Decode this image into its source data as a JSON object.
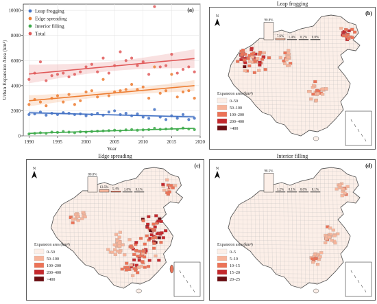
{
  "chart_data": [
    {
      "type": "scatter",
      "panel_label": "(a)",
      "xlabel": "Year",
      "ylabel": "Urban Expansion Area (km²)",
      "xlim": [
        1989,
        2020
      ],
      "ylim": [
        0,
        10500
      ],
      "x_ticks": [
        1990,
        1995,
        2000,
        2005,
        2010,
        2015,
        2020
      ],
      "y_ticks": [
        0,
        2000,
        4000,
        6000,
        8000,
        10000
      ],
      "grid": true,
      "legend_position": "top-left",
      "x": [
        1990,
        1991,
        1992,
        1993,
        1994,
        1995,
        1996,
        1997,
        1998,
        1999,
        2000,
        2001,
        2002,
        2003,
        2004,
        2005,
        2006,
        2007,
        2008,
        2009,
        2010,
        2011,
        2012,
        2013,
        2014,
        2015,
        2016,
        2017,
        2018,
        2019
      ],
      "series": [
        {
          "name": "Leap frogging",
          "color": "#4472c4",
          "values": [
            1700,
            1750,
            1900,
            1650,
            1800,
            1700,
            1850,
            1800,
            1700,
            1750,
            1600,
            1700,
            1800,
            1650,
            1900,
            2000,
            1700,
            1800,
            1600,
            1750,
            1500,
            1400,
            2100,
            1500,
            1300,
            1600,
            1400,
            1700,
            1300,
            1400
          ]
        },
        {
          "name": "Edge spreading",
          "color": "#ed7d31",
          "values": [
            2500,
            2900,
            2700,
            2400,
            3000,
            3200,
            2700,
            3300,
            2500,
            2800,
            3500,
            3600,
            3100,
            4500,
            3200,
            3500,
            3600,
            3700,
            4100,
            3700,
            3900,
            3000,
            5500,
            3400,
            3600,
            4900,
            3100,
            3500,
            3600,
            3000
          ]
        },
        {
          "name": "Interior filling",
          "color": "#3daa4a",
          "values": [
            150,
            200,
            250,
            200,
            300,
            280,
            350,
            300,
            250,
            320,
            300,
            350,
            380,
            400,
            420,
            450,
            400,
            480,
            500,
            450,
            480,
            500,
            600,
            520,
            550,
            580,
            500,
            620,
            550,
            500
          ]
        },
        {
          "name": "Total",
          "color": "#e05a5a",
          "values": [
            4500,
            5000,
            5900,
            4400,
            4800,
            4900,
            5000,
            4700,
            4900,
            5100,
            5500,
            5700,
            5100,
            6200,
            5000,
            5600,
            6700,
            6000,
            6200,
            5600,
            5900,
            4900,
            10300,
            5500,
            5600,
            6500,
            5000,
            5300,
            5500,
            5100
          ]
        }
      ]
    },
    {
      "type": "map",
      "panel_label": "(b)",
      "title": "Leap frogging",
      "legend_title": "Expansion area (km²)",
      "legend_entries": [
        "0–50",
        "50–100",
        "100–200",
        "200–400",
        ">400"
      ],
      "colors": [
        "#fcefe8",
        "#f7b59b",
        "#ec7357",
        "#c5292d",
        "#6b0d12"
      ],
      "share_labels": [
        "90.8%",
        "7.6%",
        "1.4%",
        "0.2%",
        "0.0%"
      ],
      "share_values": [
        90.8,
        7.6,
        1.4,
        0.2,
        0.0
      ],
      "north_label": "N"
    },
    {
      "type": "map",
      "panel_label": "(c)",
      "title": "Edge spreading",
      "legend_title": "Expansion area (km²)",
      "legend_entries": [
        "0–50",
        "50–100",
        "100–200",
        "200–400",
        ">400"
      ],
      "colors": [
        "#fcefe8",
        "#f7b59b",
        "#ec7357",
        "#c5292d",
        "#6b0d12"
      ],
      "share_labels": [
        "80.0%",
        "13.5%",
        "5.4%",
        "1.0%",
        "0.1%"
      ],
      "share_values": [
        80.0,
        13.5,
        5.4,
        1.0,
        0.1
      ],
      "north_label": "N"
    },
    {
      "type": "map",
      "panel_label": "(d)",
      "title": "Interior filling",
      "legend_title": "Expansion area (km²)",
      "legend_entries": [
        "0–5",
        "5–10",
        "10–15",
        "15–20",
        "20–25"
      ],
      "colors": [
        "#fcefe8",
        "#f7b59b",
        "#ec7357",
        "#c5292d",
        "#6b0d12"
      ],
      "share_labels": [
        "98.5%",
        "1.2%",
        "0.1%",
        "0.0%",
        "0.1%"
      ],
      "share_values": [
        98.5,
        1.2,
        0.1,
        0.0,
        0.1
      ],
      "north_label": "N"
    }
  ]
}
